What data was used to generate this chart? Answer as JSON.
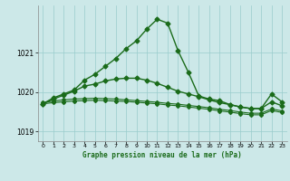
{
  "title": "Graphe pression niveau de la mer (hPa)",
  "bg_color": "#cce8e8",
  "grid_color": "#99cccc",
  "line_color": "#1a6b1a",
  "xlim_min": -0.5,
  "xlim_max": 23.5,
  "ylim_min": 1018.75,
  "ylim_max": 1022.2,
  "yticks": [
    1019,
    1020,
    1021
  ],
  "xticks": [
    0,
    1,
    2,
    3,
    4,
    5,
    6,
    7,
    8,
    9,
    10,
    11,
    12,
    13,
    14,
    15,
    16,
    17,
    18,
    19,
    20,
    21,
    22,
    23
  ],
  "s1": [
    1019.7,
    1019.85,
    1019.95,
    1020.05,
    1020.3,
    1020.45,
    1020.65,
    1020.85,
    1021.1,
    1021.3,
    1021.6,
    1021.85,
    1021.75,
    1021.05,
    1020.5,
    1019.9,
    1019.82,
    1019.78,
    1019.68,
    1019.62,
    1019.58,
    1019.58,
    1019.95,
    1019.75
  ],
  "s2": [
    1019.7,
    1019.82,
    1019.92,
    1020.02,
    1020.15,
    1020.2,
    1020.28,
    1020.33,
    1020.35,
    1020.35,
    1020.3,
    1020.22,
    1020.12,
    1020.02,
    1019.95,
    1019.88,
    1019.8,
    1019.73,
    1019.68,
    1019.62,
    1019.58,
    1019.58,
    1019.75,
    1019.65
  ],
  "s3": [
    1019.73,
    1019.77,
    1019.8,
    1019.82,
    1019.83,
    1019.84,
    1019.83,
    1019.82,
    1019.8,
    1019.78,
    1019.76,
    1019.74,
    1019.71,
    1019.69,
    1019.66,
    1019.63,
    1019.6,
    1019.56,
    1019.53,
    1019.49,
    1019.46,
    1019.46,
    1019.57,
    1019.52
  ],
  "s4": [
    1019.7,
    1019.73,
    1019.75,
    1019.77,
    1019.78,
    1019.79,
    1019.78,
    1019.77,
    1019.76,
    1019.74,
    1019.72,
    1019.7,
    1019.67,
    1019.65,
    1019.62,
    1019.59,
    1019.56,
    1019.52,
    1019.49,
    1019.45,
    1019.42,
    1019.42,
    1019.53,
    1019.48
  ]
}
